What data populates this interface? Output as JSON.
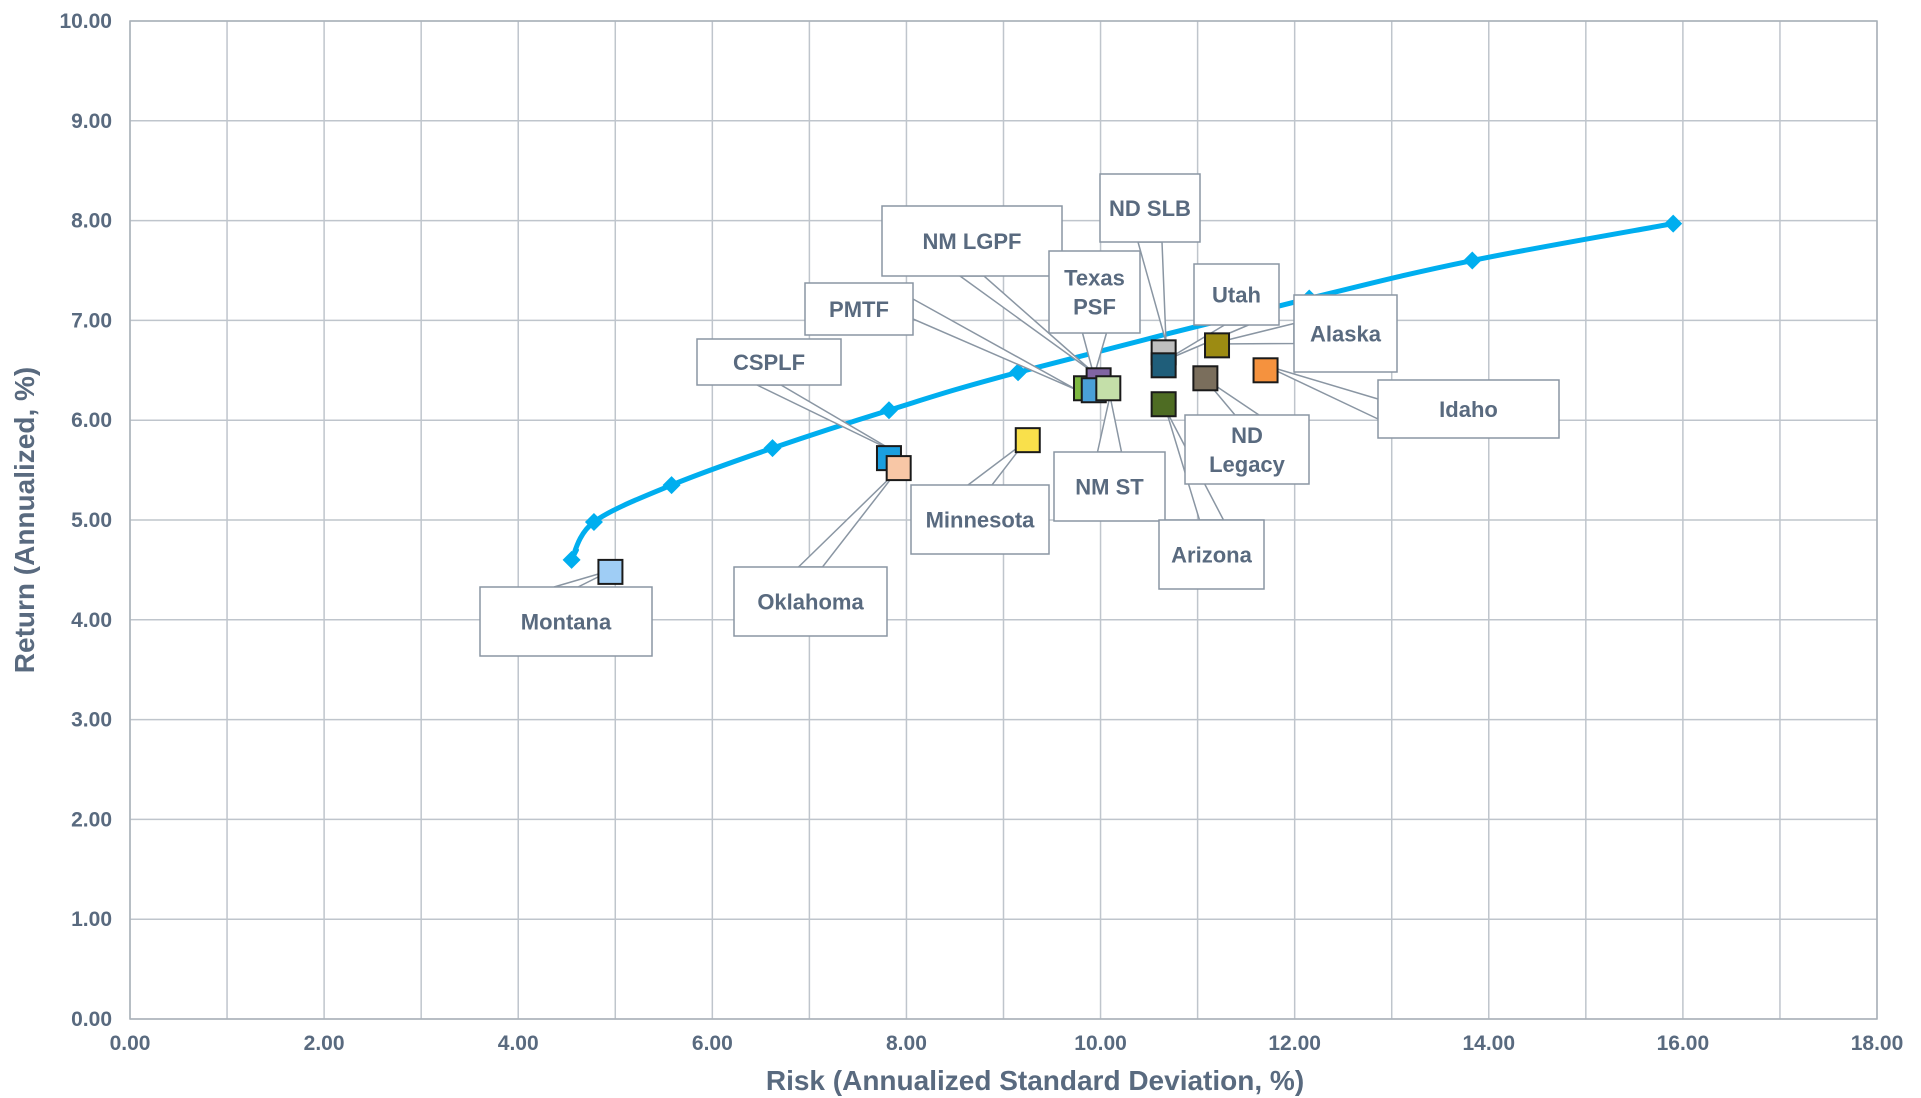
{
  "chart_data": {
    "type": "scatter",
    "xlabel": "Risk (Annualized Standard Deviation, %)",
    "ylabel": "Return (Annualized, %)",
    "xlim": [
      0,
      18
    ],
    "ylim": [
      0,
      10
    ],
    "x_ticks": [
      "0.00",
      "2.00",
      "4.00",
      "6.00",
      "8.00",
      "10.00",
      "12.00",
      "14.00",
      "16.00",
      "18.00"
    ],
    "y_ticks": [
      "0.00",
      "1.00",
      "2.00",
      "3.00",
      "4.00",
      "5.00",
      "6.00",
      "7.00",
      "8.00",
      "9.00",
      "10.00"
    ],
    "grid": true,
    "frontier": {
      "color": "#00aeef",
      "points": [
        [
          4.55,
          4.6
        ],
        [
          4.78,
          4.98
        ],
        [
          5.58,
          5.35
        ],
        [
          6.62,
          5.72
        ],
        [
          7.82,
          6.1
        ],
        [
          9.15,
          6.48
        ],
        [
          12.15,
          7.22
        ],
        [
          13.83,
          7.6
        ],
        [
          15.9,
          7.97
        ]
      ],
      "curve_start": [
        4.6,
        4.7
      ]
    },
    "funds": [
      {
        "name": "Montana",
        "label_lines": [
          "Montana"
        ],
        "x": 4.95,
        "y": 4.48,
        "color": "#9fcdf5"
      },
      {
        "name": "CSPLF",
        "label_lines": [
          "CSPLF"
        ],
        "x": 7.82,
        "y": 5.62,
        "color": "#1a9fe0"
      },
      {
        "name": "Oklahoma",
        "label_lines": [
          "Oklahoma"
        ],
        "x": 7.92,
        "y": 5.52,
        "color": "#f8c7a6"
      },
      {
        "name": "Minnesota",
        "label_lines": [
          "Minnesota"
        ],
        "x": 9.25,
        "y": 5.8,
        "color": "#f9e04b"
      },
      {
        "name": "PMTF",
        "label_lines": [
          "PMTF"
        ],
        "x": 9.85,
        "y": 6.32,
        "color": "#7fb842"
      },
      {
        "name": "NM LGPF",
        "label_lines": [
          "NM LGPF"
        ],
        "x": 9.98,
        "y": 6.4,
        "color": "#8064a2"
      },
      {
        "name": "Texas PSF",
        "label_lines": [
          "Texas",
          "PSF"
        ],
        "x": 9.93,
        "y": 6.3,
        "color": "#4aa0d8"
      },
      {
        "name": "NM ST",
        "label_lines": [
          "NM ST"
        ],
        "x": 10.08,
        "y": 6.32,
        "color": "#c4dfa9"
      },
      {
        "name": "ND SLB",
        "label_lines": [
          "ND SLB"
        ],
        "x": 10.65,
        "y": 6.68,
        "color": "#bfbfbf"
      },
      {
        "name": "Utah",
        "label_lines": [
          "Utah"
        ],
        "x": 10.65,
        "y": 6.55,
        "color": "#1f5e7a"
      },
      {
        "name": "Arizona",
        "label_lines": [
          "Arizona"
        ],
        "x": 10.65,
        "y": 6.16,
        "color": "#4e6c23"
      },
      {
        "name": "Alaska",
        "label_lines": [
          "Alaska"
        ],
        "x": 11.2,
        "y": 6.75,
        "color": "#9c8b12"
      },
      {
        "name": "ND Legacy",
        "label_lines": [
          "ND",
          "Legacy"
        ],
        "x": 11.08,
        "y": 6.42,
        "color": "#7a6e5c"
      },
      {
        "name": "Idaho",
        "label_lines": [
          "Idaho"
        ],
        "x": 11.7,
        "y": 6.5,
        "color": "#f5923e"
      }
    ]
  }
}
